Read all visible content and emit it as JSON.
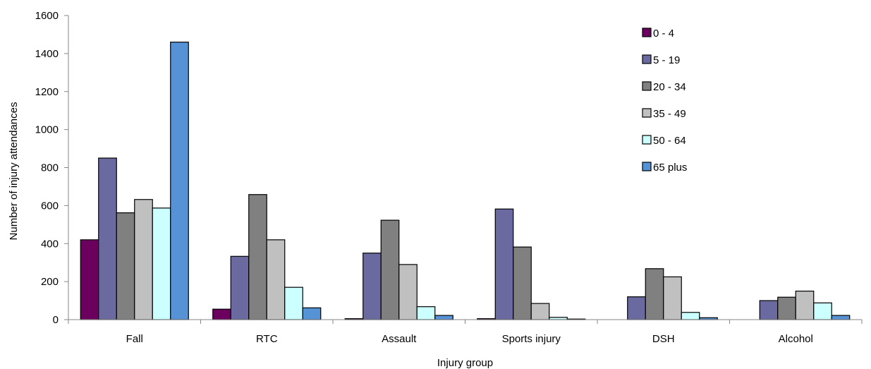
{
  "chart_data": {
    "type": "bar",
    "title": "",
    "xlabel": "Injury group",
    "ylabel": "Number of injury attendances",
    "ylim": [
      0,
      1600
    ],
    "yticks": [
      0,
      200,
      400,
      600,
      800,
      1000,
      1200,
      1400,
      1600
    ],
    "grid": false,
    "legend_position": "top-right",
    "categories": [
      "Fall",
      "RTC",
      "Assault",
      "Sports injury",
      "DSH",
      "Alcohol"
    ],
    "series": [
      {
        "name": "0 - 4",
        "color": "#6b005e",
        "values": [
          420,
          55,
          5,
          5,
          0,
          0
        ]
      },
      {
        "name": "5 - 19",
        "color": "#6a6aa0",
        "values": [
          850,
          333,
          350,
          582,
          120,
          100
        ]
      },
      {
        "name": "20 - 34",
        "color": "#808080",
        "values": [
          562,
          658,
          523,
          382,
          268,
          118
        ]
      },
      {
        "name": "35 - 49",
        "color": "#c0c0c0",
        "values": [
          632,
          420,
          290,
          85,
          225,
          150
        ]
      },
      {
        "name": "50 - 64",
        "color": "#ccffff",
        "values": [
          587,
          170,
          68,
          12,
          38,
          88
        ]
      },
      {
        "name": "65 plus",
        "color": "#5592d6",
        "values": [
          1460,
          62,
          22,
          3,
          10,
          22
        ]
      }
    ]
  }
}
